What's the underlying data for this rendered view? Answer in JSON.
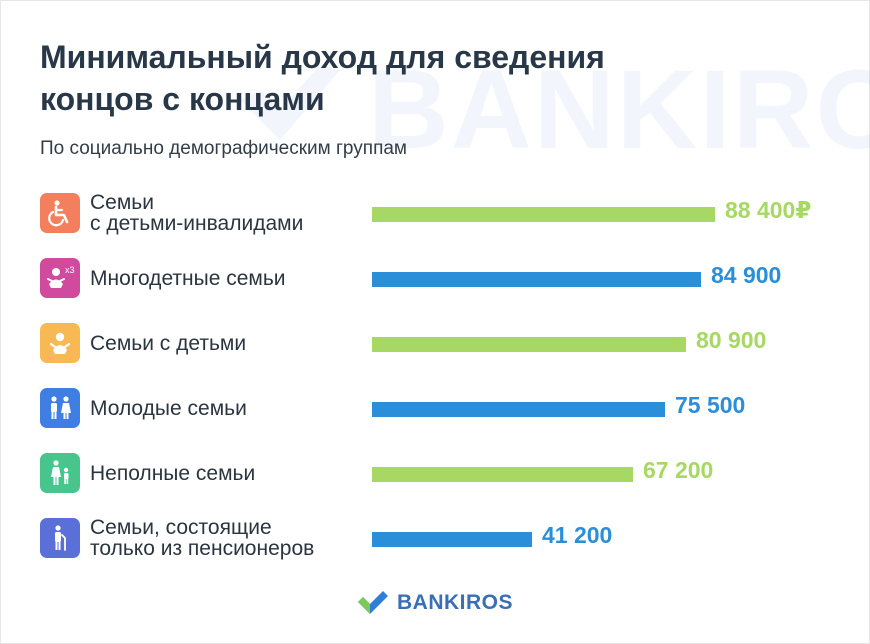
{
  "title": "Минимальный доход для сведения\nконцов с концами",
  "subtitle": "По социально демографическим группам",
  "brand": "BANKIROS",
  "watermark": "BANKIROS",
  "colors": {
    "green": "#a7d863",
    "blue": "#2a8fd8",
    "title": "#283849"
  },
  "chart_data": {
    "type": "bar",
    "orientation": "horizontal",
    "categories": [
      "Семьи\nс детьми-инвалидами",
      "Многодетные семьи",
      "Семьи с детьми",
      "Молодые семьи",
      "Неполные семьи",
      "Семьи, состоящие\nтолько из пенсионеров"
    ],
    "values": [
      88400,
      84900,
      80900,
      75500,
      67200,
      41200
    ],
    "value_labels": [
      "88 400₽",
      "84 900",
      "80 900",
      "75 500",
      "67 200",
      "41 200"
    ],
    "bar_colors": [
      "#a7d863",
      "#2a8fd8",
      "#a7d863",
      "#2a8fd8",
      "#a7d863",
      "#2a8fd8"
    ],
    "icons": [
      "wheelchair-icon",
      "babies-x3-icon",
      "baby-icon",
      "couple-icon",
      "parent-child-icon",
      "elderly-icon"
    ],
    "icon_colors": [
      "#f47f5c",
      "#d04b9d",
      "#f8b955",
      "#3f7fe4",
      "#48c58c",
      "#5b6fd8"
    ],
    "icon_badge": "x3",
    "grid": false,
    "legend": "none"
  }
}
